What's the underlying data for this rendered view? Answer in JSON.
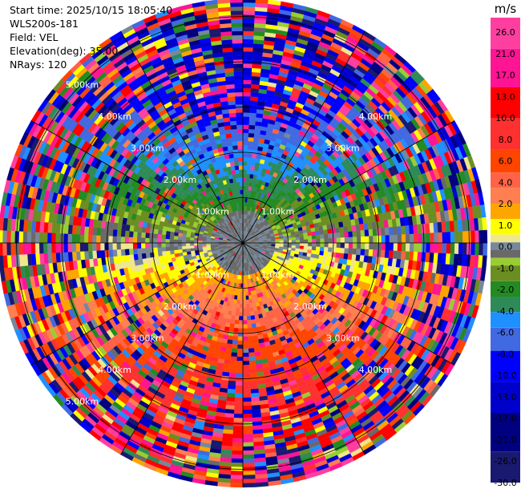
{
  "info": {
    "start_time": "Start time: 2025/10/15 18:05:40",
    "instrument": "WLS200s-181",
    "field": "Field: VEL",
    "elevation": "Elevation(deg): 35.00",
    "nrays": "NRays: 120"
  },
  "chart_data": {
    "type": "heatmap",
    "projection": "polar (PPI)",
    "field": "VEL",
    "units": "m/s",
    "elevation_deg": 35.0,
    "n_rays": 120,
    "max_range_km": 5.4,
    "range_rings_km": [
      1.0,
      2.0,
      3.0,
      4.0,
      5.0
    ],
    "ring_labels": [
      "1.00km",
      "2.00km",
      "3.00km",
      "4.00km",
      "5.00km"
    ],
    "colorbar": {
      "unit_label": "m/s",
      "ticks": [
        "26.0",
        "21.0",
        "17.0",
        "13.0",
        "10.0",
        "8.0",
        "6.0",
        "4.0",
        "2.0",
        "1.0",
        "0.0",
        "-1.0",
        "-2.0",
        "-4.0",
        "-6.0",
        "-8.0",
        "-10.0",
        "-13.0",
        "-17.0",
        "-21.0",
        "-26.0",
        "-30.0"
      ],
      "bins": [
        {
          "min": 26,
          "max": 30,
          "color": "#ff3fa0"
        },
        {
          "min": 21,
          "max": 26,
          "color": "#ff1493"
        },
        {
          "min": 17,
          "max": 21,
          "color": "#ff0000"
        },
        {
          "min": 13,
          "max": 17,
          "color": "#ff3030"
        },
        {
          "min": 10,
          "max": 13,
          "color": "#ff4500"
        },
        {
          "min": 8,
          "max": 10,
          "color": "#ff6347"
        },
        {
          "min": 6,
          "max": 8,
          "color": "#ff7f50"
        },
        {
          "min": 4,
          "max": 6,
          "color": "#ffa500"
        },
        {
          "min": 2,
          "max": 4,
          "color": "#ffff00"
        },
        {
          "min": 1,
          "max": 2,
          "color": "#f0e68c"
        },
        {
          "min": 0,
          "max": 1,
          "color": "#778899"
        },
        {
          "min": -1,
          "max": 0,
          "color": "#696969"
        },
        {
          "min": -2,
          "max": -1,
          "color": "#9acd32"
        },
        {
          "min": -4,
          "max": -2,
          "color": "#6b8e23"
        },
        {
          "min": -6,
          "max": -4,
          "color": "#228b22"
        },
        {
          "min": -8,
          "max": -6,
          "color": "#2e8b57"
        },
        {
          "min": -10,
          "max": -8,
          "color": "#1e90ff"
        },
        {
          "min": -13,
          "max": -10,
          "color": "#4169e1"
        },
        {
          "min": -17,
          "max": -13,
          "color": "#0000ff"
        },
        {
          "min": -21,
          "max": -17,
          "color": "#0000cd"
        },
        {
          "min": -26,
          "max": -21,
          "color": "#000080"
        },
        {
          "min": -30,
          "max": -26,
          "color": "#191970"
        }
      ]
    }
  }
}
